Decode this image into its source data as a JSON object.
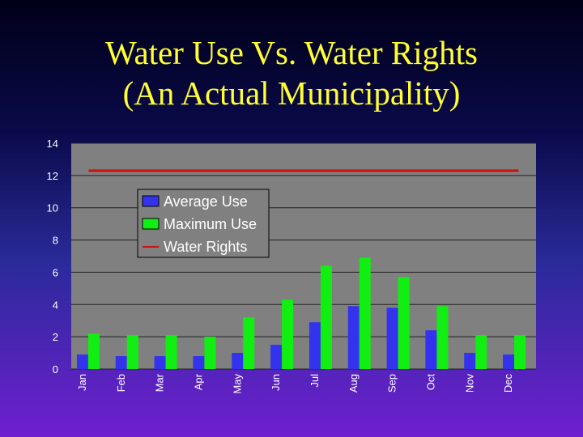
{
  "slide": {
    "title_line1": "Water Use Vs. Water Rights",
    "title_line2": "(An Actual Municipality)"
  },
  "colors": {
    "plot_bg": "#808080",
    "gridline": "#222222",
    "average": "#3333ee",
    "maximum": "#11ee11",
    "rights": "#cc1111"
  },
  "chart_data": {
    "type": "bar",
    "title": "Water Use Vs. Water Rights (An Actual Municipality)",
    "categories": [
      "Jan",
      "Feb",
      "Mar",
      "Apr",
      "May",
      "Jun",
      "Jul",
      "Aug",
      "Sep",
      "Oct",
      "Nov",
      "Dec"
    ],
    "series": [
      {
        "name": "Average Use",
        "type": "bar",
        "color": "#3333ee",
        "values": [
          0.9,
          0.8,
          0.8,
          0.8,
          1.0,
          1.5,
          2.9,
          3.9,
          3.8,
          2.4,
          1.0,
          0.9
        ]
      },
      {
        "name": "Maximum Use",
        "type": "bar",
        "color": "#11ee11",
        "values": [
          2.2,
          2.1,
          2.1,
          2.0,
          3.2,
          4.3,
          6.4,
          6.9,
          5.7,
          3.9,
          2.1,
          2.1
        ]
      },
      {
        "name": "Water Rights",
        "type": "line",
        "color": "#cc1111",
        "values": [
          12.3,
          12.3,
          12.3,
          12.3,
          12.3,
          12.3,
          12.3,
          12.3,
          12.3,
          12.3,
          12.3,
          12.3
        ]
      }
    ],
    "ylim": [
      0,
      14
    ],
    "yticks": [
      0,
      2,
      4,
      6,
      8,
      10,
      12,
      14
    ],
    "grid": true,
    "legend": "upper-left",
    "xlabel": "",
    "ylabel": ""
  }
}
